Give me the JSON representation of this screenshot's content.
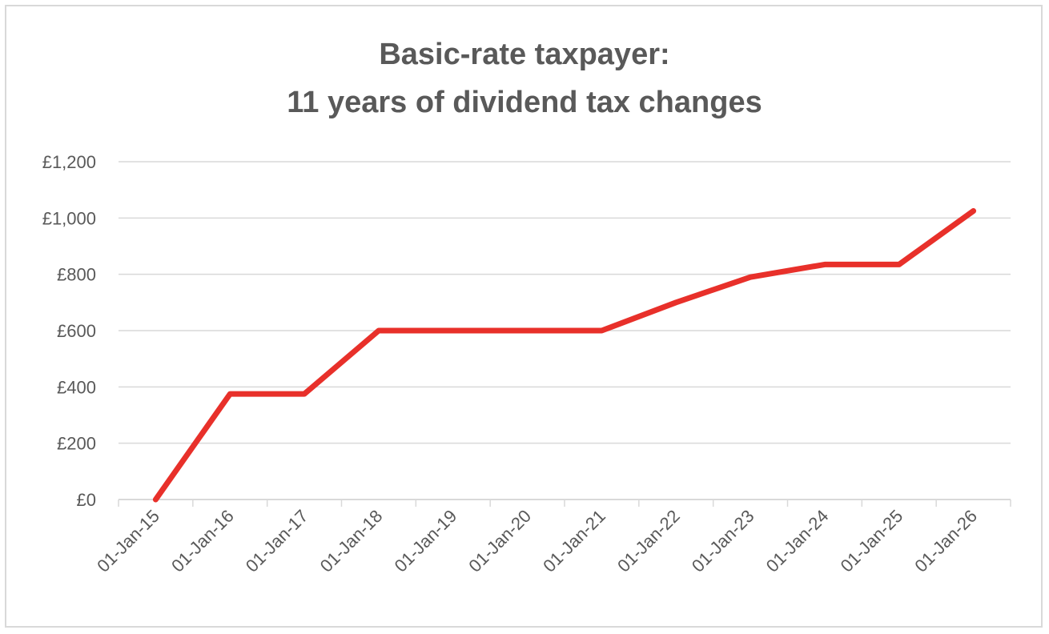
{
  "chart_data": {
    "type": "line",
    "title_lines": [
      "Basic-rate taxpayer:",
      "11 years of dividend tax changes"
    ],
    "xlabel": "",
    "ylabel": "",
    "x_ticks": [
      "01-Jan-15",
      "01-Jan-16",
      "01-Jan-17",
      "01-Jan-18",
      "01-Jan-19",
      "01-Jan-20",
      "01-Jan-21",
      "01-Jan-22",
      "01-Jan-23",
      "01-Jan-24",
      "01-Jan-25",
      "01-Jan-26"
    ],
    "y_ticks": [
      "£0",
      "£200",
      "£400",
      "£600",
      "£800",
      "£1,000",
      "£1,200"
    ],
    "ylim": [
      0,
      1200
    ],
    "grid": true,
    "legend": "none",
    "series": [
      {
        "color": "#e8302a",
        "x": [
          "01-Jan-15",
          "01-Jan-16",
          "01-Jan-17",
          "01-Jan-18",
          "01-Jan-19",
          "01-Jan-20",
          "01-Jan-21",
          "01-Jan-22",
          "01-Jan-23",
          "01-Jan-24",
          "01-Jan-25",
          "01-Jan-26"
        ],
        "values": [
          0,
          375,
          375,
          600,
          600,
          600,
          600,
          700,
          790,
          835,
          835,
          1025
        ]
      }
    ]
  }
}
